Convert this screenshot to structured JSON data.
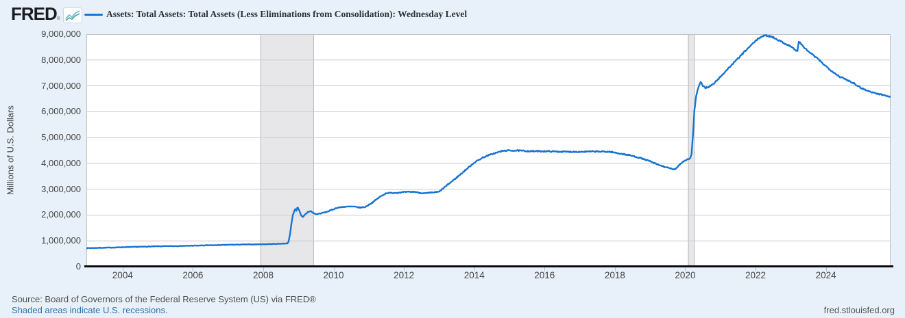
{
  "page": {
    "background": "#e8f1f9"
  },
  "header": {
    "logo_text": "FRED",
    "logo_registered": "®",
    "legend_color": "#1874d2"
  },
  "y_axis": {
    "tick_labels": [
      "9,000,000",
      "8,000,000",
      "7,000,000",
      "6,000,000",
      "5,000,000",
      "4,000,000",
      "3,000,000",
      "2,000,000",
      "1,000,000",
      "0"
    ],
    "tick_values": [
      9000000,
      8000000,
      7000000,
      6000000,
      5000000,
      4000000,
      3000000,
      2000000,
      1000000,
      0
    ]
  },
  "x_axis": {
    "tick_labels": [
      "2004",
      "2006",
      "2008",
      "2010",
      "2012",
      "2014",
      "2016",
      "2018",
      "2020",
      "2022",
      "2024"
    ],
    "tick_years": [
      2004,
      2006,
      2008,
      2010,
      2012,
      2014,
      2016,
      2018,
      2020,
      2022,
      2024
    ]
  },
  "footer": {
    "source": "Source: Board of Governors of the Federal Reserve System (US) via FRED®",
    "recession_note": "Shaded areas indicate U.S. recessions.",
    "site_link": "fred.stlouisfed.org"
  },
  "chart_data": {
    "type": "line",
    "title": "Assets: Total Assets: Total Assets (Less Eliminations from Consolidation): Wednesday Level",
    "xlabel": "",
    "ylabel": "Millions of U.S. Dollars",
    "ylim": [
      0,
      9000000
    ],
    "xlim": [
      2002.97,
      2025.84
    ],
    "grid": "horizontal",
    "legend_position": "top",
    "line_color": "#1874d2",
    "recession_band_fill": "#e7e7e9",
    "recession_band_edge": "#b4b4b8",
    "gridline_color": "#c9c9c9",
    "recession_bands": [
      [
        2007.92,
        2009.42
      ],
      [
        2020.08,
        2020.25
      ]
    ],
    "series": [
      {
        "name": "Assets: Total Assets: Total Assets (Less Eliminations from Consolidation): Wednesday Level",
        "points": [
          [
            2002.97,
            720000
          ],
          [
            2003.2,
            725000
          ],
          [
            2003.5,
            735000
          ],
          [
            2003.8,
            745000
          ],
          [
            2004.0,
            755000
          ],
          [
            2004.3,
            765000
          ],
          [
            2004.6,
            775000
          ],
          [
            2005.0,
            790000
          ],
          [
            2005.4,
            798000
          ],
          [
            2005.8,
            808000
          ],
          [
            2006.2,
            820000
          ],
          [
            2006.6,
            832000
          ],
          [
            2007.0,
            848000
          ],
          [
            2007.4,
            858000
          ],
          [
            2007.92,
            868000
          ],
          [
            2008.3,
            880000
          ],
          [
            2008.55,
            895000
          ],
          [
            2008.68,
            905000
          ],
          [
            2008.72,
            960000
          ],
          [
            2008.76,
            1250000
          ],
          [
            2008.8,
            1650000
          ],
          [
            2008.84,
            2000000
          ],
          [
            2008.88,
            2150000
          ],
          [
            2008.91,
            2220000
          ],
          [
            2008.94,
            2160000
          ],
          [
            2008.97,
            2300000
          ],
          [
            2009.02,
            2200000
          ],
          [
            2009.08,
            1970000
          ],
          [
            2009.13,
            1920000
          ],
          [
            2009.2,
            2030000
          ],
          [
            2009.28,
            2130000
          ],
          [
            2009.35,
            2150000
          ],
          [
            2009.42,
            2080000
          ],
          [
            2009.5,
            2030000
          ],
          [
            2009.65,
            2070000
          ],
          [
            2009.8,
            2120000
          ],
          [
            2009.95,
            2200000
          ],
          [
            2010.1,
            2280000
          ],
          [
            2010.3,
            2320000
          ],
          [
            2010.55,
            2330000
          ],
          [
            2010.75,
            2290000
          ],
          [
            2010.9,
            2310000
          ],
          [
            2011.1,
            2480000
          ],
          [
            2011.3,
            2690000
          ],
          [
            2011.5,
            2850000
          ],
          [
            2011.8,
            2860000
          ],
          [
            2012.0,
            2890000
          ],
          [
            2012.3,
            2900000
          ],
          [
            2012.45,
            2860000
          ],
          [
            2012.6,
            2840000
          ],
          [
            2012.8,
            2870000
          ],
          [
            2013.0,
            2900000
          ],
          [
            2013.25,
            3180000
          ],
          [
            2013.5,
            3450000
          ],
          [
            2013.75,
            3740000
          ],
          [
            2014.0,
            4030000
          ],
          [
            2014.25,
            4230000
          ],
          [
            2014.5,
            4360000
          ],
          [
            2014.8,
            4480000
          ],
          [
            2015.0,
            4500000
          ],
          [
            2015.3,
            4490000
          ],
          [
            2015.6,
            4470000
          ],
          [
            2016.0,
            4470000
          ],
          [
            2016.5,
            4450000
          ],
          [
            2017.0,
            4450000
          ],
          [
            2017.5,
            4460000
          ],
          [
            2017.85,
            4450000
          ],
          [
            2018.1,
            4390000
          ],
          [
            2018.4,
            4320000
          ],
          [
            2018.7,
            4220000
          ],
          [
            2019.0,
            4080000
          ],
          [
            2019.2,
            3960000
          ],
          [
            2019.4,
            3870000
          ],
          [
            2019.6,
            3790000
          ],
          [
            2019.72,
            3760000
          ],
          [
            2019.8,
            3900000
          ],
          [
            2019.87,
            3990000
          ],
          [
            2019.95,
            4080000
          ],
          [
            2020.05,
            4150000
          ],
          [
            2020.13,
            4180000
          ],
          [
            2020.18,
            4360000
          ],
          [
            2020.22,
            5100000
          ],
          [
            2020.26,
            6050000
          ],
          [
            2020.31,
            6600000
          ],
          [
            2020.38,
            6980000
          ],
          [
            2020.44,
            7130000
          ],
          [
            2020.5,
            7010000
          ],
          [
            2020.57,
            6930000
          ],
          [
            2020.65,
            6950000
          ],
          [
            2020.8,
            7070000
          ],
          [
            2021.0,
            7350000
          ],
          [
            2021.2,
            7640000
          ],
          [
            2021.45,
            7990000
          ],
          [
            2021.7,
            8340000
          ],
          [
            2022.0,
            8740000
          ],
          [
            2022.15,
            8900000
          ],
          [
            2022.28,
            8950000
          ],
          [
            2022.45,
            8910000
          ],
          [
            2022.6,
            8810000
          ],
          [
            2022.8,
            8660000
          ],
          [
            2023.0,
            8530000
          ],
          [
            2023.12,
            8400000
          ],
          [
            2023.19,
            8340000
          ],
          [
            2023.23,
            8710000
          ],
          [
            2023.3,
            8610000
          ],
          [
            2023.45,
            8390000
          ],
          [
            2023.6,
            8230000
          ],
          [
            2023.8,
            8010000
          ],
          [
            2024.0,
            7760000
          ],
          [
            2024.2,
            7540000
          ],
          [
            2024.4,
            7350000
          ],
          [
            2024.6,
            7230000
          ],
          [
            2024.8,
            7100000
          ],
          [
            2025.0,
            6920000
          ],
          [
            2025.2,
            6800000
          ],
          [
            2025.45,
            6700000
          ],
          [
            2025.65,
            6640000
          ],
          [
            2025.84,
            6580000
          ]
        ]
      }
    ]
  }
}
